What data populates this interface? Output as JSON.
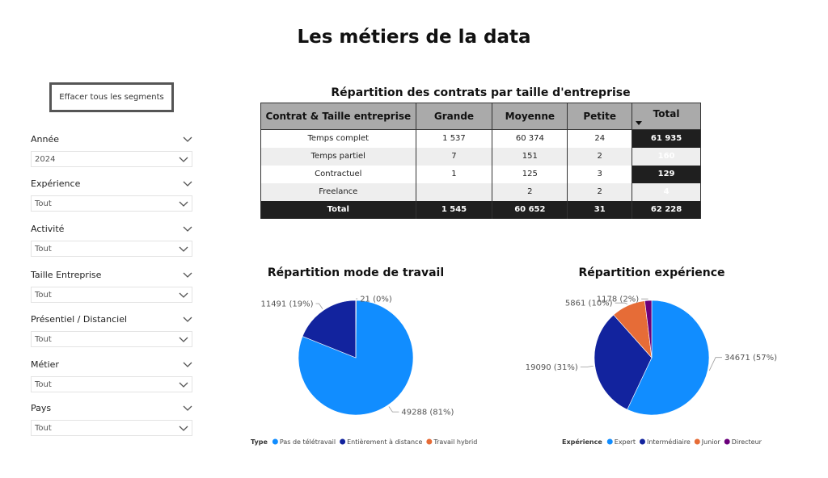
{
  "page": {
    "title": "Les métiers de la data"
  },
  "clear_button": {
    "label": "Effacer tous les segments"
  },
  "slicers": [
    {
      "label": "Année",
      "value": "2024"
    },
    {
      "label": "Expérience",
      "value": "Tout"
    },
    {
      "label": "Activité",
      "value": "Tout"
    },
    {
      "label": "Taille Entreprise",
      "value": "Tout"
    },
    {
      "label": "Présentiel / Distanciel",
      "value": "Tout"
    },
    {
      "label": "Métier",
      "value": "Tout"
    },
    {
      "label": "Pays",
      "value": "Tout"
    }
  ],
  "chart_data": [
    {
      "type": "table",
      "title": "Répartition des contrats par taille d'entreprise",
      "columns": [
        "Contrat & Taille entreprise",
        "Grande",
        "Moyenne",
        "Petite",
        "Total"
      ],
      "rows": [
        [
          "Temps complet",
          "1 537",
          "60 374",
          "24",
          "61 935"
        ],
        [
          "Temps partiel",
          "7",
          "151",
          "2",
          "160"
        ],
        [
          "Contractuel",
          "1",
          "125",
          "3",
          "129"
        ],
        [
          "Freelance",
          "",
          "2",
          "2",
          "4"
        ]
      ],
      "totals": [
        "Total",
        "1 545",
        "60 652",
        "31",
        "62 228"
      ]
    },
    {
      "type": "pie",
      "title": "Répartition mode de travail",
      "legend_title": "Type",
      "legend_position": "bottom",
      "categories": [
        "Pas de télétravail",
        "Entièrement à distance",
        "Travail hybride"
      ],
      "values": [
        49288,
        11491,
        21
      ],
      "labels": [
        "49288 (81%)",
        "11491 (19%)",
        "21 (0%)"
      ],
      "colors": [
        "#118dff",
        "#12239e",
        "#e66c37"
      ]
    },
    {
      "type": "pie",
      "title": "Répartition expérience",
      "legend_title": "Expérience",
      "legend_position": "bottom",
      "categories": [
        "Expert",
        "Intermédiaire",
        "Junior",
        "Directeur"
      ],
      "values": [
        34671,
        19090,
        5861,
        1178
      ],
      "labels": [
        "34671 (57%)",
        "19090 (31%)",
        "5861 (10%)",
        "1178 (2%)"
      ],
      "colors": [
        "#118dff",
        "#12239e",
        "#e66c37",
        "#6b007b"
      ]
    }
  ]
}
